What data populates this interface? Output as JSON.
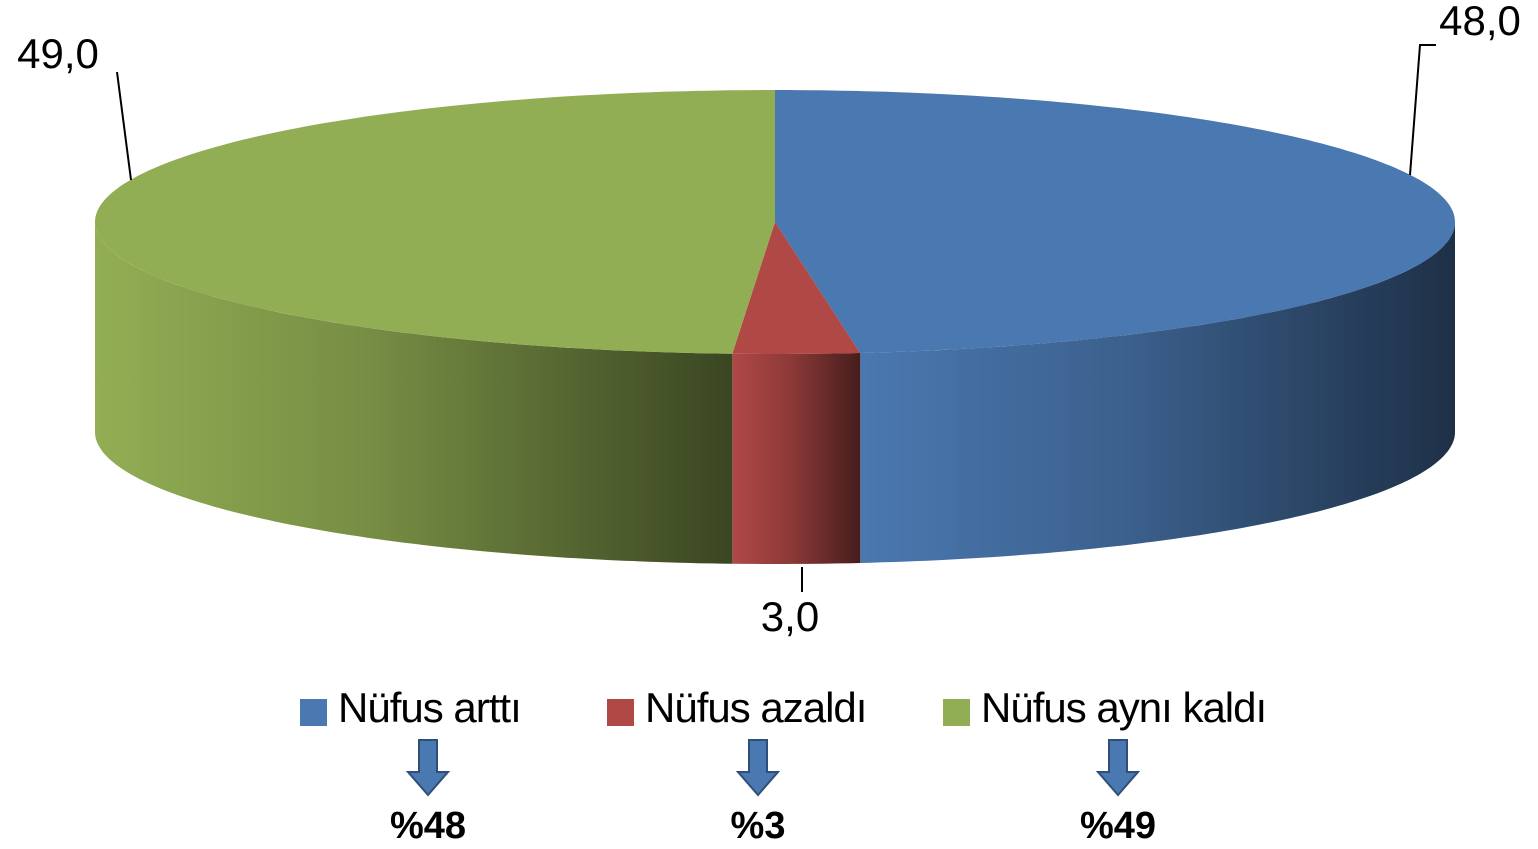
{
  "chart_data": {
    "type": "pie",
    "categories": [
      "Nüfus arttı",
      "Nüfus azaldı",
      "Nüfus aynı kaldı"
    ],
    "values": [
      48,
      3,
      49
    ],
    "value_labels": [
      "48,0",
      "3,0",
      "49,0"
    ],
    "colors": [
      "#4a78b0",
      "#b04846",
      "#92ae54"
    ],
    "legend": "bottom",
    "annotations": [
      "%48",
      "%3",
      "%49"
    ]
  }
}
